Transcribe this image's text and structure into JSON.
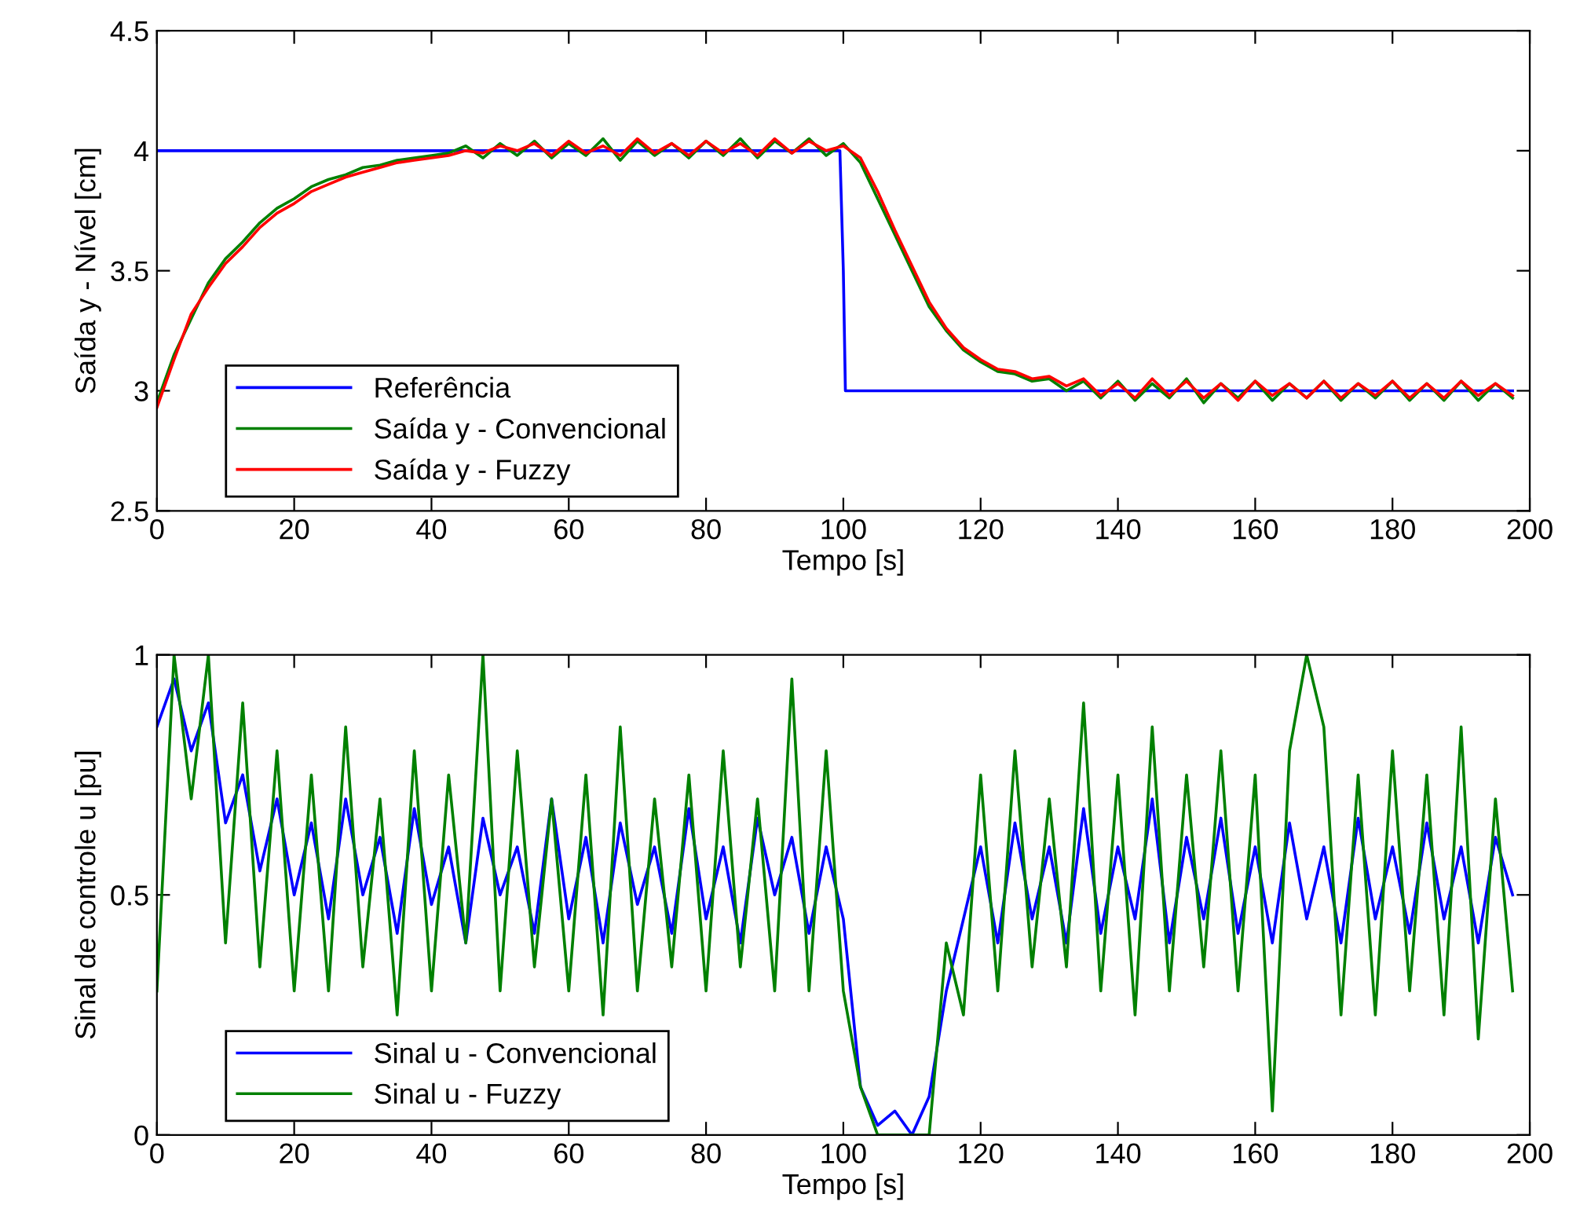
{
  "chart_data": [
    {
      "type": "line",
      "xlabel": "Tempo [s]",
      "ylabel": "Saída y - Nível [cm]",
      "xlim": [
        0,
        200
      ],
      "xticks": [
        0,
        20,
        40,
        60,
        80,
        100,
        120,
        140,
        160,
        180,
        200
      ],
      "ylim": [
        2.5,
        4.5
      ],
      "yticks": [
        2.5,
        3,
        3.5,
        4,
        4.5
      ],
      "legend": "bottom left",
      "x": [
        0,
        2.5,
        5,
        7.5,
        10,
        12.5,
        15,
        17.5,
        20,
        22.5,
        25,
        27.5,
        30,
        32.5,
        35,
        37.5,
        40,
        42.5,
        45,
        47.5,
        50,
        52.5,
        55,
        57.5,
        60,
        62.5,
        65,
        67.5,
        70,
        72.5,
        75,
        77.5,
        80,
        82.5,
        85,
        87.5,
        90,
        92.5,
        95,
        97.5,
        100,
        102.5,
        105,
        107.5,
        110,
        112.5,
        115,
        117.5,
        120,
        122.5,
        125,
        127.5,
        130,
        132.5,
        135,
        137.5,
        140,
        142.5,
        145,
        147.5,
        150,
        152.5,
        155,
        157.5,
        160,
        162.5,
        165,
        167.5,
        170,
        172.5,
        175,
        177.5,
        180,
        182.5,
        185,
        187.5,
        190,
        192.5,
        195,
        197.5
      ],
      "series": [
        {
          "name": "Referência",
          "color": "#0000ff",
          "x": [
            0,
            99.5,
            100,
            100.3,
            197.5
          ],
          "values": [
            4,
            4,
            3.5,
            3,
            3
          ]
        },
        {
          "name": "Saída y - Convencional",
          "color": "#008000",
          "values": [
            2.95,
            3.15,
            3.3,
            3.45,
            3.55,
            3.62,
            3.7,
            3.76,
            3.8,
            3.85,
            3.88,
            3.9,
            3.93,
            3.94,
            3.96,
            3.97,
            3.98,
            3.99,
            4.02,
            3.97,
            4.03,
            3.98,
            4.04,
            3.97,
            4.03,
            3.98,
            4.05,
            3.96,
            4.04,
            3.98,
            4.03,
            3.97,
            4.04,
            3.98,
            4.05,
            3.97,
            4.04,
            3.99,
            4.05,
            3.98,
            4.03,
            3.95,
            3.8,
            3.65,
            3.5,
            3.35,
            3.25,
            3.17,
            3.12,
            3.08,
            3.07,
            3.04,
            3.05,
            3.0,
            3.04,
            2.97,
            3.04,
            2.96,
            3.03,
            2.97,
            3.05,
            2.95,
            3.03,
            2.97,
            3.04,
            2.96,
            3.03,
            2.97,
            3.04,
            2.96,
            3.03,
            2.97,
            3.04,
            2.96,
            3.03,
            2.96,
            3.04,
            2.96,
            3.03,
            2.97
          ]
        },
        {
          "name": "Saída y - Fuzzy",
          "color": "#ff0000",
          "values": [
            2.93,
            3.13,
            3.32,
            3.43,
            3.53,
            3.6,
            3.68,
            3.74,
            3.78,
            3.83,
            3.86,
            3.89,
            3.91,
            3.93,
            3.95,
            3.96,
            3.97,
            3.98,
            4.0,
            3.99,
            4.02,
            4.0,
            4.03,
            3.98,
            4.04,
            3.99,
            4.02,
            3.98,
            4.05,
            3.99,
            4.03,
            3.98,
            4.04,
            3.99,
            4.03,
            3.98,
            4.05,
            3.99,
            4.04,
            4.0,
            4.02,
            3.97,
            3.83,
            3.67,
            3.52,
            3.37,
            3.26,
            3.18,
            3.13,
            3.09,
            3.08,
            3.05,
            3.06,
            3.02,
            3.05,
            2.98,
            3.03,
            2.97,
            3.05,
            2.98,
            3.04,
            2.97,
            3.03,
            2.96,
            3.04,
            2.98,
            3.03,
            2.97,
            3.04,
            2.97,
            3.03,
            2.98,
            3.04,
            2.97,
            3.03,
            2.97,
            3.04,
            2.98,
            3.03,
            2.98
          ]
        }
      ]
    },
    {
      "type": "line",
      "xlabel": "Tempo [s]",
      "ylabel": "Sinal de controle u [pu]",
      "xlim": [
        0,
        200
      ],
      "xticks": [
        0,
        20,
        40,
        60,
        80,
        100,
        120,
        140,
        160,
        180,
        200
      ],
      "ylim": [
        0,
        1
      ],
      "yticks": [
        0,
        0.5,
        1
      ],
      "legend": "bottom left",
      "x": [
        0,
        2.5,
        5,
        7.5,
        10,
        12.5,
        15,
        17.5,
        20,
        22.5,
        25,
        27.5,
        30,
        32.5,
        35,
        37.5,
        40,
        42.5,
        45,
        47.5,
        50,
        52.5,
        55,
        57.5,
        60,
        62.5,
        65,
        67.5,
        70,
        72.5,
        75,
        77.5,
        80,
        82.5,
        85,
        87.5,
        90,
        92.5,
        95,
        97.5,
        100,
        102.5,
        105,
        107.5,
        110,
        112.5,
        115,
        117.5,
        120,
        122.5,
        125,
        127.5,
        130,
        132.5,
        135,
        137.5,
        140,
        142.5,
        145,
        147.5,
        150,
        152.5,
        155,
        157.5,
        160,
        162.5,
        165,
        167.5,
        170,
        172.5,
        175,
        177.5,
        180,
        182.5,
        185,
        187.5,
        190,
        192.5,
        195,
        197.5
      ],
      "series": [
        {
          "name": "Sinal u - Convencional",
          "color": "#0000ff",
          "values": [
            0.85,
            0.95,
            0.8,
            0.9,
            0.65,
            0.75,
            0.55,
            0.7,
            0.5,
            0.65,
            0.45,
            0.7,
            0.5,
            0.62,
            0.42,
            0.68,
            0.48,
            0.6,
            0.4,
            0.66,
            0.5,
            0.6,
            0.42,
            0.7,
            0.45,
            0.62,
            0.4,
            0.65,
            0.48,
            0.6,
            0.42,
            0.68,
            0.45,
            0.6,
            0.4,
            0.66,
            0.5,
            0.62,
            0.42,
            0.6,
            0.45,
            0.1,
            0.02,
            0.05,
            0.0,
            0.08,
            0.3,
            0.45,
            0.6,
            0.4,
            0.65,
            0.45,
            0.6,
            0.4,
            0.68,
            0.42,
            0.6,
            0.45,
            0.7,
            0.4,
            0.62,
            0.45,
            0.66,
            0.42,
            0.6,
            0.4,
            0.65,
            0.45,
            0.6,
            0.4,
            0.66,
            0.45,
            0.6,
            0.42,
            0.65,
            0.45,
            0.6,
            0.4,
            0.62,
            0.5
          ]
        },
        {
          "name": "Sinal u - Fuzzy",
          "color": "#008000",
          "values": [
            0.3,
            1.0,
            0.7,
            1.0,
            0.4,
            0.9,
            0.35,
            0.8,
            0.3,
            0.75,
            0.3,
            0.85,
            0.35,
            0.7,
            0.25,
            0.8,
            0.3,
            0.75,
            0.4,
            1.0,
            0.3,
            0.8,
            0.35,
            0.7,
            0.3,
            0.75,
            0.25,
            0.85,
            0.3,
            0.7,
            0.35,
            0.75,
            0.3,
            0.8,
            0.35,
            0.7,
            0.3,
            0.95,
            0.3,
            0.8,
            0.3,
            0.1,
            0.0,
            0.0,
            0.0,
            0.0,
            0.4,
            0.25,
            0.75,
            0.3,
            0.8,
            0.35,
            0.7,
            0.35,
            0.9,
            0.3,
            0.75,
            0.25,
            0.85,
            0.3,
            0.75,
            0.35,
            0.8,
            0.3,
            0.75,
            0.05,
            0.8,
            1.0,
            0.85,
            0.25,
            0.75,
            0.25,
            0.8,
            0.3,
            0.75,
            0.25,
            0.85,
            0.2,
            0.7,
            0.3
          ]
        }
      ]
    }
  ]
}
